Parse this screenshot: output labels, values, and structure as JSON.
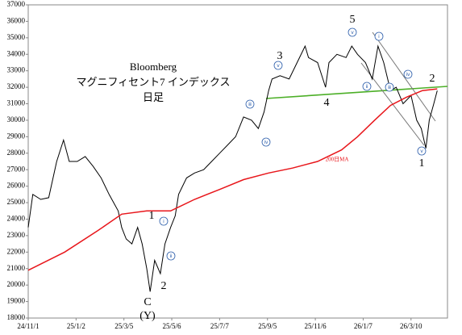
{
  "chart_data": {
    "type": "line",
    "title_lines": [
      "Bloomberg",
      "マグニフィセント7 インデックス",
      "日足"
    ],
    "xlim": [
      0,
      368
    ],
    "xticks": [
      {
        "value": 0,
        "label": "24/11/1"
      },
      {
        "value": 42,
        "label": "25/1/2"
      },
      {
        "value": 84,
        "label": "25/3/5"
      },
      {
        "value": 126,
        "label": "25/5/6"
      },
      {
        "value": 168,
        "label": "25/7/7"
      },
      {
        "value": 210,
        "label": "25/9/5"
      },
      {
        "value": 252,
        "label": "25/11/6"
      },
      {
        "value": 294,
        "label": "26/1/7"
      },
      {
        "value": 336,
        "label": "26/3/10"
      }
    ],
    "ylim": [
      18000,
      37000
    ],
    "yticks": [
      18000,
      19000,
      20000,
      21000,
      22000,
      23000,
      24000,
      25000,
      26000,
      27000,
      28000,
      29000,
      30000,
      31000,
      32000,
      33000,
      34000,
      35000,
      36000,
      37000
    ],
    "grid": false,
    "series": [
      {
        "color": "#000000",
        "x": [
          0,
          4,
          11,
          18,
          25,
          31,
          36,
          43,
          50,
          57,
          64,
          71,
          79,
          82,
          86,
          91,
          96,
          100,
          104,
          107,
          111,
          116,
          120,
          125,
          129,
          132,
          139,
          146,
          154,
          161,
          168,
          175,
          182,
          189,
          196,
          202,
          207,
          211,
          214,
          221,
          229,
          236,
          243,
          246,
          254,
          261,
          264,
          271,
          279,
          284,
          289,
          296,
          302,
          307,
          312,
          318,
          323,
          329,
          336,
          341,
          345,
          349,
          352,
          356,
          359
        ],
        "values": [
          23500,
          25500,
          25200,
          25300,
          27500,
          28800,
          27500,
          27500,
          27800,
          27200,
          26500,
          25500,
          24500,
          23500,
          22800,
          22500,
          23500,
          22500,
          21000,
          19600,
          21500,
          20700,
          22500,
          23500,
          24200,
          25500,
          26500,
          26800,
          27000,
          27500,
          28000,
          28500,
          29000,
          30200,
          30000,
          29500,
          30500,
          31800,
          32500,
          32700,
          32500,
          33500,
          34500,
          33800,
          33500,
          32000,
          33500,
          34000,
          33800,
          34500,
          34000,
          33500,
          32500,
          34500,
          33500,
          31800,
          32000,
          31000,
          31500,
          30000,
          29500,
          28300,
          30000,
          31000,
          31800
        ]
      },
      {
        "name": "200日MA",
        "color": "#e8161b",
        "x": [
          0,
          32,
          61,
          82,
          104,
          125,
          146,
          168,
          189,
          211,
          232,
          254,
          275,
          289,
          304,
          318,
          332,
          346,
          359
        ],
        "values": [
          20900,
          22000,
          23300,
          24300,
          24500,
          24500,
          25200,
          25800,
          26400,
          26800,
          27100,
          27500,
          28200,
          29000,
          30000,
          30900,
          31400,
          31800,
          31900
        ]
      }
    ],
    "wave_labels": [
      "5",
      "3",
      "4",
      "2",
      "1",
      "1",
      "2",
      "C",
      "(Y)"
    ],
    "circled_labels": [
      "ⅲ",
      "ⅳ",
      "ⅴ",
      "ⅴ",
      "ⅰ",
      "ⅱ",
      "ⅲ",
      "ⅳ",
      "ⅴ",
      "ⅰ",
      "ⅱ"
    ]
  }
}
